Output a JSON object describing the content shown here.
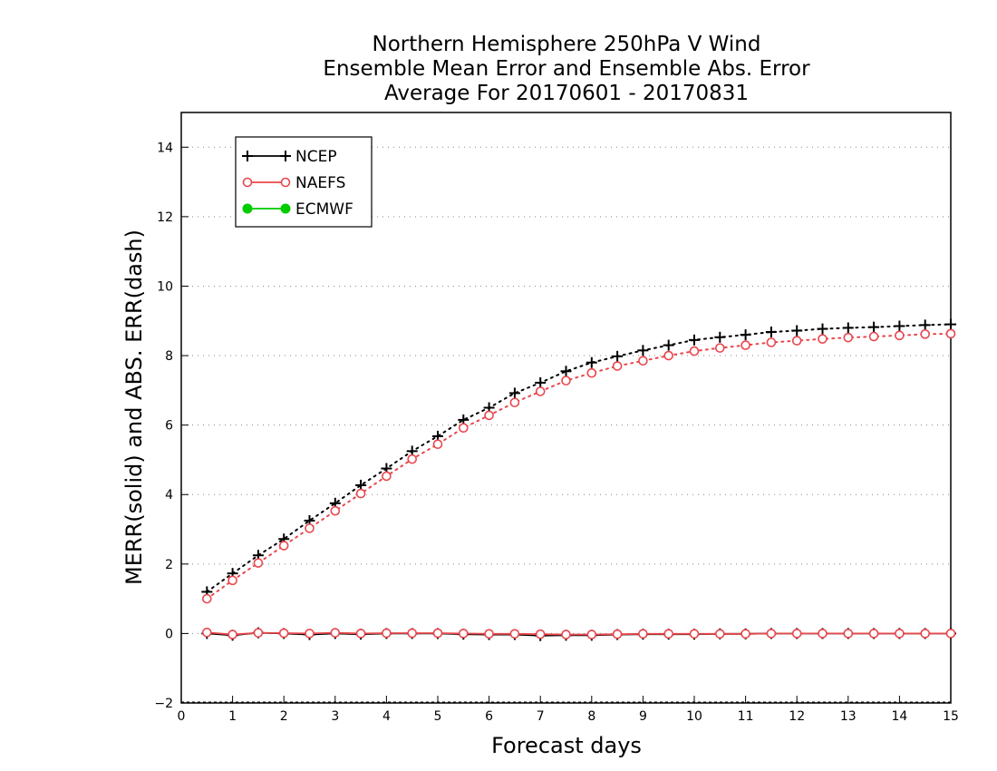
{
  "chart_data": {
    "type": "line",
    "title": [
      "Northern Hemisphere 250hPa V Wind",
      "Ensemble Mean Error and Ensemble Abs. Error",
      "Average For 20170601 - 20170831"
    ],
    "xlabel": "Forecast days",
    "ylabel": "MERR(solid) and ABS. ERR(dash)",
    "xlim": [
      0,
      15
    ],
    "ylim": [
      -2,
      15
    ],
    "xticks": [
      0,
      1,
      2,
      3,
      4,
      5,
      6,
      7,
      8,
      9,
      10,
      11,
      12,
      13,
      14,
      15
    ],
    "yticks": [
      -2,
      0,
      2,
      4,
      6,
      8,
      10,
      12,
      14
    ],
    "grid": "horizontal-dotted",
    "legend_position": "top-left",
    "x": [
      0.5,
      1,
      1.5,
      2,
      2.5,
      3,
      3.5,
      4,
      4.5,
      5,
      5.5,
      6,
      6.5,
      7,
      7.5,
      8,
      8.5,
      9,
      9.5,
      10,
      10.5,
      11,
      11.5,
      12,
      12.5,
      13,
      13.5,
      14,
      14.5,
      15
    ],
    "series": [
      {
        "name": "NCEP",
        "color": "#000000",
        "marker": "plus",
        "merr": [
          0.0,
          -0.05,
          0.02,
          0.0,
          -0.03,
          0.0,
          -0.02,
          0.0,
          0.0,
          0.0,
          -0.02,
          -0.03,
          -0.03,
          -0.06,
          -0.05,
          -0.05,
          -0.03,
          -0.02,
          -0.02,
          -0.02,
          -0.01,
          -0.01,
          0.0,
          0.0,
          0.0,
          0.0,
          0.0,
          0.0,
          0.0,
          0.0
        ],
        "abs_err": [
          1.2,
          1.73,
          2.25,
          2.72,
          3.25,
          3.75,
          4.27,
          4.75,
          5.25,
          5.68,
          6.15,
          6.5,
          6.92,
          7.22,
          7.55,
          7.8,
          7.98,
          8.15,
          8.3,
          8.45,
          8.53,
          8.6,
          8.68,
          8.72,
          8.77,
          8.8,
          8.82,
          8.85,
          8.88,
          8.9
        ]
      },
      {
        "name": "NAEFS",
        "color": "#e8474d",
        "marker": "circle",
        "merr": [
          0.03,
          -0.03,
          0.02,
          0.01,
          0.0,
          0.02,
          0.0,
          0.01,
          0.01,
          0.01,
          0.0,
          -0.01,
          -0.01,
          -0.02,
          -0.03,
          -0.03,
          -0.02,
          -0.01,
          -0.01,
          -0.01,
          -0.01,
          -0.01,
          0.0,
          0.0,
          0.0,
          0.0,
          0.0,
          0.0,
          0.0,
          0.0
        ],
        "abs_err": [
          1.0,
          1.53,
          2.03,
          2.53,
          3.03,
          3.53,
          4.03,
          4.53,
          5.02,
          5.45,
          5.92,
          6.28,
          6.65,
          6.97,
          7.28,
          7.5,
          7.7,
          7.85,
          8.0,
          8.13,
          8.22,
          8.3,
          8.38,
          8.43,
          8.48,
          8.52,
          8.55,
          8.58,
          8.62,
          8.63
        ]
      },
      {
        "name": "ECMWF",
        "color": "#00cc00",
        "marker": "filled-circle",
        "merr": [],
        "abs_err": []
      }
    ]
  }
}
